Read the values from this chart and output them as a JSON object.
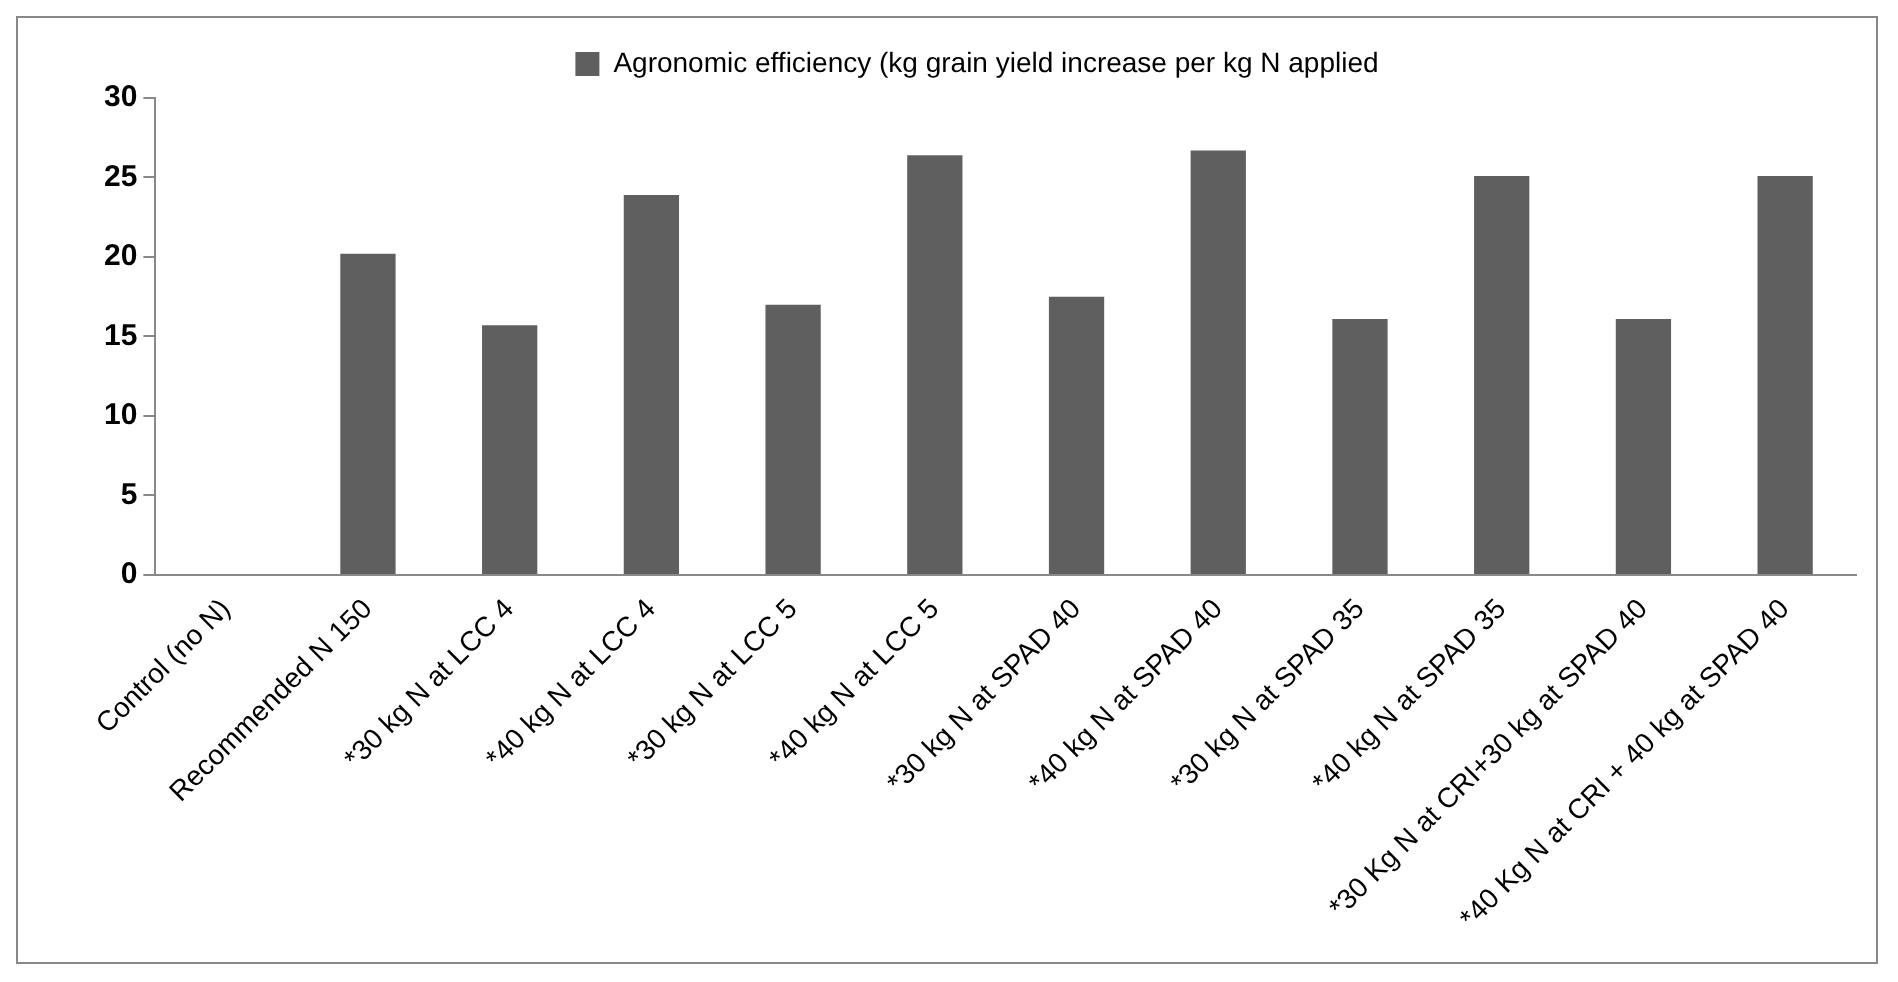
{
  "chart_data": {
    "type": "bar",
    "categories": [
      "Control (no N)",
      "Recommended N 150",
      "*30 kg N at LCC 4",
      "*40 kg N at LCC 4",
      "*30 kg N at LCC 5",
      "*40 kg N at LCC 5",
      "*30 kg N at SPAD 40",
      "*40 kg N at SPAD 40",
      "*30 kg N at SPAD 35",
      "*40 kg N at SPAD 35",
      "*30 Kg N at CRI+30 kg at SPAD 40",
      "*40 Kg N at CRI + 40 kg at SPAD 40"
    ],
    "series": [
      {
        "name": "Agronomic efficiency (kg grain yield increase per kg N applied",
        "color": "#5f5f5f",
        "values": [
          0,
          20.2,
          15.7,
          23.9,
          17.0,
          26.4,
          17.5,
          26.7,
          16.1,
          25.1,
          16.1,
          25.1
        ]
      }
    ],
    "ylim": [
      0,
      30
    ],
    "yticks": [
      0,
      5,
      10,
      15,
      20,
      25,
      30
    ],
    "grid": false,
    "legend": "top"
  }
}
